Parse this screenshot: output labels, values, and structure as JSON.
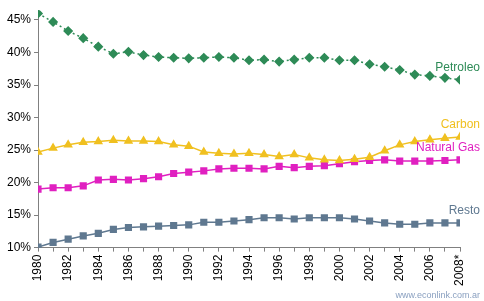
{
  "chart_data": {
    "type": "line",
    "categories": [
      "1980",
      null,
      "1982",
      null,
      "1984",
      null,
      "1986",
      null,
      "1988",
      null,
      "1990",
      null,
      "1992",
      null,
      "1994",
      null,
      "1996",
      null,
      "1998",
      null,
      "2000",
      null,
      "2002",
      null,
      "2004",
      null,
      "2006",
      null,
      "2008*"
    ],
    "series": [
      {
        "name": "Petroleo",
        "color": "#2e8b57",
        "marker": "diamond",
        "line_style": "dotted",
        "values": [
          46.0,
          44.7,
          43.3,
          42.2,
          40.9,
          39.8,
          40.1,
          39.6,
          39.3,
          39.2,
          39.1,
          39.2,
          39.3,
          39.2,
          38.8,
          38.9,
          38.6,
          38.9,
          39.2,
          39.2,
          38.8,
          38.8,
          38.2,
          37.8,
          37.3,
          36.6,
          36.4,
          36.1,
          35.8
        ]
      },
      {
        "name": "Carbon",
        "color": "#f0c020",
        "marker": "triangle",
        "line_style": "solid",
        "values": [
          24.7,
          25.3,
          25.8,
          26.2,
          26.3,
          26.5,
          26.4,
          26.4,
          26.3,
          25.8,
          25.6,
          24.7,
          24.5,
          24.4,
          24.5,
          24.3,
          24.0,
          24.3,
          23.8,
          23.5,
          23.4,
          23.6,
          23.9,
          24.9,
          25.8,
          26.3,
          26.6,
          26.8,
          27.0
        ]
      },
      {
        "name": "Natural Gas",
        "color": "#e020c0",
        "marker": "square",
        "line_style": "solid",
        "values": [
          19.0,
          19.2,
          19.2,
          19.5,
          20.4,
          20.5,
          20.4,
          20.6,
          20.9,
          21.4,
          21.6,
          21.8,
          22.1,
          22.2,
          22.2,
          22.1,
          22.5,
          22.3,
          22.5,
          22.6,
          22.9,
          23.2,
          23.4,
          23.5,
          23.3,
          23.3,
          23.3,
          23.4,
          23.5
        ]
      },
      {
        "name": "Resto",
        "color": "#5f7890",
        "marker": "square",
        "line_style": "solid",
        "values": [
          10.1,
          10.8,
          11.3,
          11.8,
          12.2,
          12.8,
          13.1,
          13.2,
          13.3,
          13.4,
          13.5,
          13.9,
          13.9,
          14.1,
          14.3,
          14.6,
          14.6,
          14.4,
          14.6,
          14.6,
          14.6,
          14.4,
          14.1,
          13.8,
          13.6,
          13.6,
          13.8,
          13.8,
          13.8
        ]
      }
    ],
    "ylim": [
      10,
      46.5
    ],
    "yticks": [
      {
        "value": 10,
        "label": "10%"
      },
      {
        "value": 15,
        "label": "15%"
      },
      {
        "value": 20,
        "label": "20%"
      },
      {
        "value": 25,
        "label": "25%"
      },
      {
        "value": 30,
        "label": "30%"
      },
      {
        "value": 35,
        "label": "35%"
      },
      {
        "value": 40,
        "label": "40%"
      },
      {
        "value": 45,
        "label": "45%"
      }
    ],
    "grid": false,
    "annotations": [
      "www.econlink.com.ar"
    ]
  }
}
